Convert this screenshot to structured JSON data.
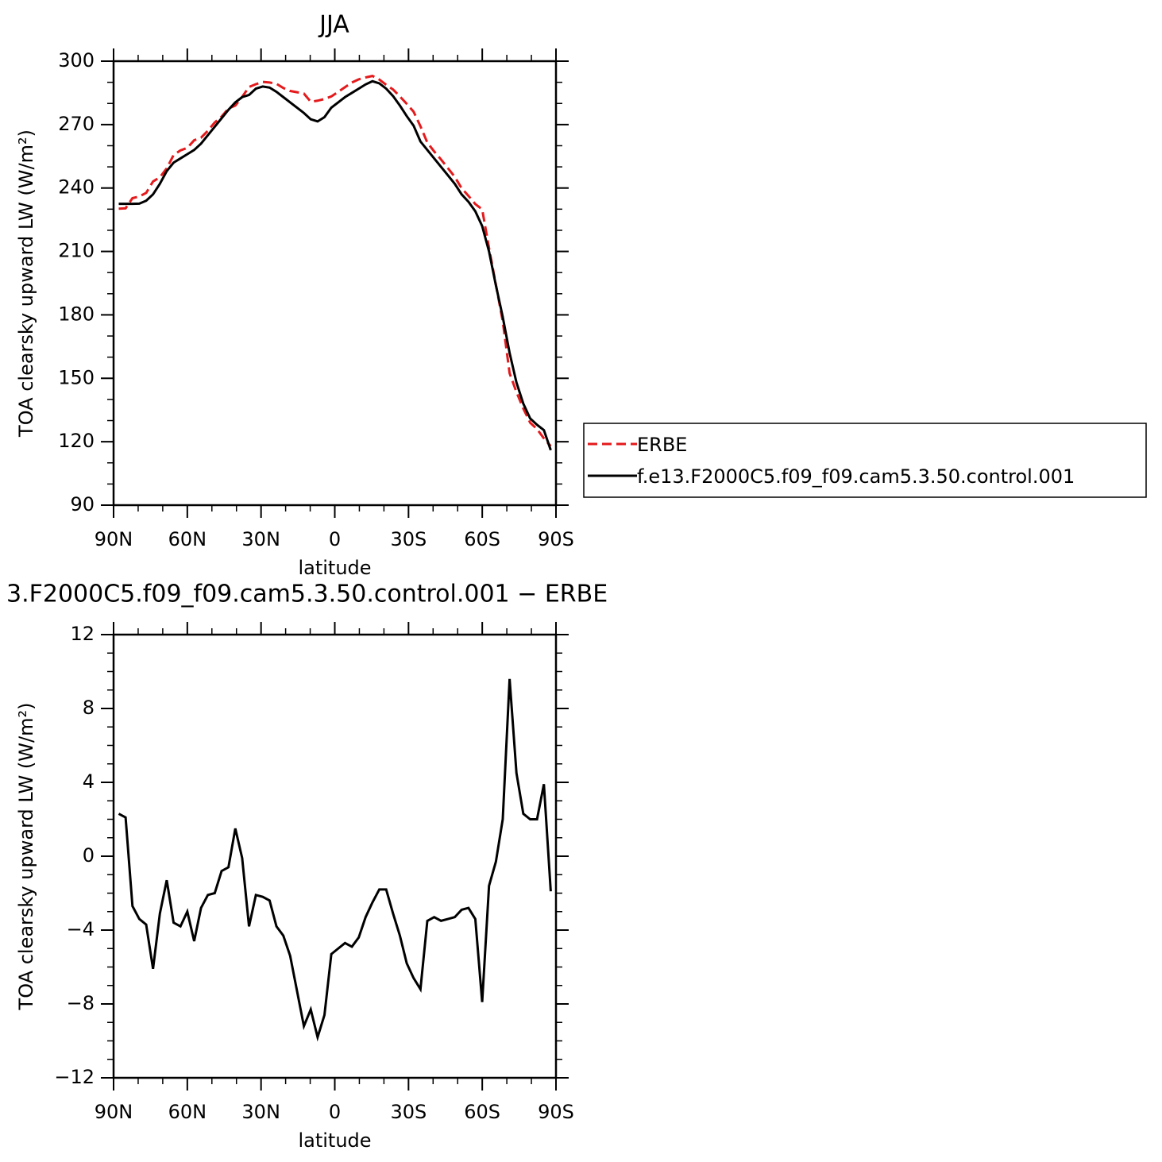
{
  "chart_data": [
    {
      "type": "line",
      "title": "JJA",
      "xlabel": "latitude",
      "ylabel": "TOA clearsky upward LW (W/m²)",
      "x": [
        87.9,
        85.11,
        82.32,
        79.53,
        76.74,
        73.95,
        71.16,
        68.37,
        65.58,
        62.79,
        60.0,
        57.21,
        54.42,
        51.63,
        48.84,
        46.05,
        43.26,
        40.47,
        37.68,
        34.89,
        32.1,
        29.31,
        26.52,
        23.73,
        20.94,
        18.15,
        15.36,
        12.57,
        9.78,
        6.99,
        4.2,
        1.41,
        -1.38,
        -4.17,
        -6.96,
        -9.75,
        -12.54,
        -15.33,
        -18.12,
        -20.91,
        -23.7,
        -26.49,
        -29.28,
        -32.07,
        -34.86,
        -37.65,
        -40.44,
        -43.23,
        -46.02,
        -48.81,
        -51.6,
        -54.39,
        -57.18,
        -59.97,
        -62.76,
        -65.55,
        -68.34,
        -71.13,
        -73.92,
        -76.71,
        -79.5,
        -82.29,
        -85.08,
        -87.87
      ],
      "xlim": [
        90,
        -90
      ],
      "xticks": [
        {
          "value": 90,
          "label": "90N"
        },
        {
          "value": 60,
          "label": "60N"
        },
        {
          "value": 30,
          "label": "30N"
        },
        0,
        {
          "value": -30,
          "label": "30S"
        },
        {
          "value": -60,
          "label": "60S"
        },
        {
          "value": -90,
          "label": "90S"
        }
      ],
      "xminorticks": [
        80,
        70,
        50,
        40,
        20,
        10,
        -10,
        -20,
        -40,
        -50,
        -70,
        -80
      ],
      "ylim": [
        90,
        300
      ],
      "yticks": [
        90,
        120,
        150,
        180,
        210,
        240,
        270,
        300
      ],
      "yminorticks": [
        100,
        110,
        130,
        140,
        160,
        170,
        190,
        200,
        220,
        230,
        250,
        260,
        280,
        290
      ],
      "legend": "right",
      "series": [
        {
          "name": "ERBE",
          "color": "#e41a1c",
          "linestyle": "dashed",
          "values": [
            230.2,
            230.4,
            235.2,
            236.0,
            237.7,
            243.1,
            245.1,
            249.3,
            255.6,
            257.8,
            259.0,
            262.6,
            263.8,
            267.1,
            271.0,
            273.8,
            277.6,
            279.0,
            283.1,
            287.8,
            289.1,
            290.2,
            289.9,
            289.3,
            287.3,
            285.9,
            285.3,
            284.7,
            280.8,
            281.3,
            282.1,
            283.3,
            285.5,
            287.7,
            289.9,
            291.4,
            292.3,
            293.0,
            291.3,
            288.8,
            286.6,
            283.3,
            279.8,
            276.1,
            269.2,
            261.5,
            257.3,
            253.5,
            249.4,
            245.3,
            239.9,
            236.3,
            232.4,
            229.9,
            211.6,
            194.3,
            177.0,
            152.4,
            143.5,
            135.7,
            129.0,
            126.0,
            121.6,
            117.9
          ]
        },
        {
          "name": "f.e13.F2000C5.f09_f09.cam5.3.50.control.001",
          "color": "#000000",
          "linestyle": "solid",
          "values": [
            232.5,
            232.5,
            232.5,
            232.6,
            234,
            237,
            242,
            248,
            252,
            254,
            256,
            258,
            261,
            265,
            269,
            273,
            277,
            280.5,
            283,
            284,
            287,
            288,
            287.5,
            285.5,
            283,
            280.5,
            278,
            275.5,
            272.5,
            271.5,
            273.5,
            278,
            280.5,
            283,
            285,
            287,
            289,
            290.5,
            289.5,
            287,
            283.5,
            279,
            274,
            269.5,
            262,
            258,
            254,
            250,
            246,
            242,
            237,
            233.5,
            229,
            222,
            210,
            194,
            179,
            162,
            148,
            138,
            131,
            128,
            125.5,
            116
          ]
        }
      ]
    },
    {
      "type": "line",
      "title": "3.F2000C5.f09_f09.cam5.3.50.control.001 − ERBE",
      "xlabel": "latitude",
      "ylabel": "TOA clearsky upward LW (W/m²)",
      "x": [
        87.9,
        85.11,
        82.32,
        79.53,
        76.74,
        73.95,
        71.16,
        68.37,
        65.58,
        62.79,
        60.0,
        57.21,
        54.42,
        51.63,
        48.84,
        46.05,
        43.26,
        40.47,
        37.68,
        34.89,
        32.1,
        29.31,
        26.52,
        23.73,
        20.94,
        18.15,
        15.36,
        12.57,
        9.78,
        6.99,
        4.2,
        1.41,
        -1.38,
        -4.17,
        -6.96,
        -9.75,
        -12.54,
        -15.33,
        -18.12,
        -20.91,
        -23.7,
        -26.49,
        -29.28,
        -32.07,
        -34.86,
        -37.65,
        -40.44,
        -43.23,
        -46.02,
        -48.81,
        -51.6,
        -54.39,
        -57.18,
        -59.97,
        -62.76,
        -65.55,
        -68.34,
        -71.13,
        -73.92,
        -76.71,
        -79.5,
        -82.29,
        -85.08,
        -87.87
      ],
      "xlim": [
        90,
        -90
      ],
      "xticks": [
        {
          "value": 90,
          "label": "90N"
        },
        {
          "value": 60,
          "label": "60N"
        },
        {
          "value": 30,
          "label": "30N"
        },
        0,
        {
          "value": -30,
          "label": "30S"
        },
        {
          "value": -60,
          "label": "60S"
        },
        {
          "value": -90,
          "label": "90S"
        }
      ],
      "xminorticks": [
        80,
        70,
        50,
        40,
        20,
        10,
        -10,
        -20,
        -40,
        -50,
        -70,
        -80
      ],
      "ylim": [
        -12,
        12
      ],
      "yticks": [
        {
          "value": -12,
          "label": "−12"
        },
        {
          "value": -8,
          "label": "−8"
        },
        {
          "value": -4,
          "label": "−4"
        },
        0,
        4,
        8,
        12
      ],
      "yminorticks": [
        -11,
        -10,
        -9,
        -7,
        -6,
        -5,
        -3,
        -2,
        -1,
        1,
        2,
        3,
        5,
        6,
        7,
        9,
        10,
        11
      ],
      "series": [
        {
          "name": "f.e13.F2000C5.f09_f09.cam5.3.50.control.001",
          "color": "#000000",
          "linestyle": "solid",
          "values": [
            2.3,
            2.1,
            -2.7,
            -3.4,
            -3.7,
            -6.1,
            -3.1,
            -1.3,
            -3.6,
            -3.8,
            -3.0,
            -4.6,
            -2.8,
            -2.1,
            -2.0,
            -0.8,
            -0.6,
            1.5,
            -0.1,
            -3.8,
            -2.1,
            -2.2,
            -2.4,
            -3.8,
            -4.3,
            -5.4,
            -7.3,
            -9.2,
            -8.3,
            -9.8,
            -8.6,
            -5.3,
            -5.0,
            -4.7,
            -4.9,
            -4.4,
            -3.3,
            -2.5,
            -1.8,
            -1.8,
            -3.1,
            -4.3,
            -5.8,
            -6.6,
            -7.2,
            -3.5,
            -3.3,
            -3.5,
            -3.4,
            -3.3,
            -2.9,
            -2.8,
            -3.4,
            -7.9,
            -1.6,
            -0.3,
            2.0,
            9.6,
            4.5,
            2.3,
            2.0,
            2.0,
            3.9,
            -1.9
          ]
        }
      ]
    }
  ]
}
